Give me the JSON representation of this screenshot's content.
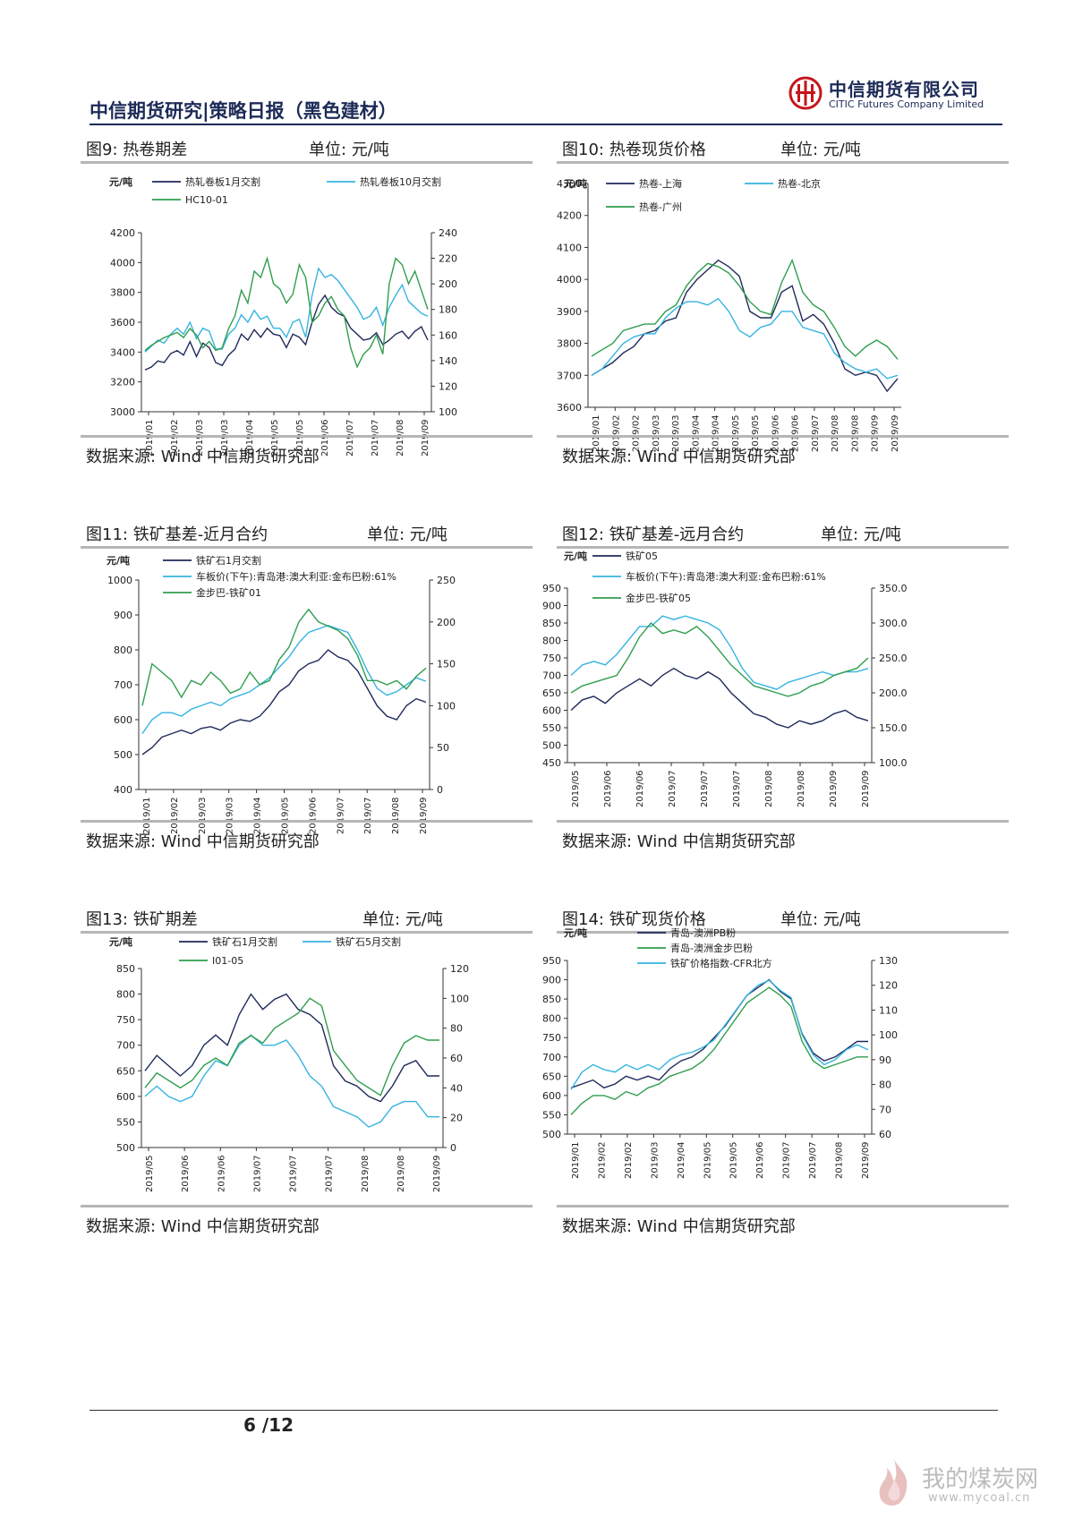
{
  "header": {
    "title": "中信期货研究|策略日报（黑色建材）",
    "logo_cn": "中信期货有限公司",
    "logo_en": "CITIC Futures Company Limited",
    "brand_color": "#c4161c",
    "navy": "#1c2a57"
  },
  "footer": {
    "page": "6 /12"
  },
  "watermark": {
    "cn": "我的煤炭网",
    "url": "www.mycoal.cn"
  },
  "panels": [
    {
      "title": "图9: 热卷期差",
      "unit": "单位: 元/吨",
      "source": "数据来源: Wind 中信期货研究部",
      "chart_data": {
        "type": "line",
        "ylabel": "元/吨",
        "ylim": [
          3000,
          4200
        ],
        "y_ticks": [
          3000,
          3200,
          3400,
          3600,
          3800,
          4000,
          4200
        ],
        "y2lim": [
          100,
          240
        ],
        "y2_ticks": [
          100,
          120,
          140,
          160,
          180,
          200,
          220,
          240
        ],
        "x_ticks": [
          "2019/01",
          "2019/02",
          "2019/03",
          "2019/03",
          "2019/04",
          "2019/05",
          "2019/05",
          "2019/06",
          "2019/07",
          "2019/07",
          "2019/08",
          "2019/09"
        ],
        "series": [
          {
            "name": "热轧卷板1月交割",
            "axis": "left",
            "color": "#1f2a5a",
            "values": [
              3280,
              3300,
              3340,
              3330,
              3390,
              3410,
              3380,
              3470,
              3370,
              3460,
              3430,
              3330,
              3310,
              3380,
              3420,
              3520,
              3480,
              3550,
              3500,
              3560,
              3520,
              3510,
              3430,
              3520,
              3500,
              3450,
              3600,
              3720,
              3780,
              3700,
              3660,
              3640,
              3560,
              3520,
              3480,
              3490,
              3530,
              3450,
              3480,
              3520,
              3540,
              3490,
              3540,
              3570,
              3480
            ]
          },
          {
            "name": "热轧卷板10月交割",
            "axis": "left",
            "color": "#35b4e0",
            "values": [
              3400,
              3440,
              3480,
              3460,
              3520,
              3560,
              3520,
              3600,
              3490,
              3560,
              3540,
              3420,
              3420,
              3520,
              3560,
              3650,
              3600,
              3680,
              3620,
              3640,
              3560,
              3560,
              3500,
              3600,
              3620,
              3500,
              3780,
              3960,
              3900,
              3920,
              3880,
              3820,
              3760,
              3700,
              3620,
              3640,
              3700,
              3580,
              3700,
              3780,
              3850,
              3740,
              3700,
              3660,
              3640
            ]
          },
          {
            "name": "HC10-01",
            "axis": "right",
            "color": "#2f9e4e",
            "values": [
              148,
              152,
              155,
              158,
              160,
              162,
              158,
              165,
              160,
              150,
              155,
              148,
              150,
              165,
              175,
              195,
              185,
              210,
              205,
              220,
              200,
              196,
              185,
              192,
              215,
              205,
              170,
              175,
              185,
              190,
              180,
              175,
              150,
              135,
              145,
              150,
              160,
              145,
              200,
              220,
              215,
              200,
              210,
              195,
              180
            ]
          }
        ]
      }
    },
    {
      "title": "图10: 热卷现货价格",
      "unit": "单位: 元/吨",
      "source": "数据来源: Wind 中信期货研究部",
      "chart_data": {
        "type": "line",
        "ylabel": "元/吨",
        "ylim": [
          3600,
          4300
        ],
        "y_ticks": [
          3600,
          3700,
          3800,
          3900,
          4000,
          4100,
          4200,
          4300
        ],
        "x_ticks": [
          "2019/01",
          "2019/02",
          "2019/02",
          "2019/03",
          "2019/03",
          "2019/04",
          "2019/04",
          "2019/05",
          "2019/05",
          "2019/06",
          "2019/06",
          "2019/07",
          "2019/08",
          "2019/08",
          "2019/09",
          "2019/09"
        ],
        "series": [
          {
            "name": "热卷-上海",
            "color": "#1f2a5a",
            "values": [
              3700,
              3720,
              3740,
              3770,
              3790,
              3830,
              3840,
              3870,
              3880,
              3960,
              4000,
              4030,
              4060,
              4040,
              4010,
              3900,
              3880,
              3880,
              3960,
              3980,
              3870,
              3890,
              3860,
              3800,
              3720,
              3700,
              3710,
              3700,
              3650,
              3690
            ]
          },
          {
            "name": "热卷-北京",
            "color": "#35b4e0",
            "values": [
              3700,
              3720,
              3760,
              3800,
              3820,
              3830,
              3830,
              3880,
              3910,
              3930,
              3930,
              3920,
              3940,
              3900,
              3840,
              3820,
              3850,
              3860,
              3900,
              3900,
              3850,
              3840,
              3830,
              3770,
              3740,
              3720,
              3710,
              3720,
              3690,
              3700
            ]
          },
          {
            "name": "热卷-广州",
            "color": "#2f9e4e",
            "values": [
              3760,
              3780,
              3800,
              3840,
              3850,
              3860,
              3860,
              3900,
              3920,
              3980,
              4020,
              4050,
              4040,
              4020,
              3980,
              3930,
              3900,
              3890,
              3990,
              4060,
              3960,
              3920,
              3900,
              3850,
              3790,
              3760,
              3790,
              3810,
              3790,
              3750
            ]
          }
        ]
      }
    },
    {
      "title": "图11: 铁矿基差-近月合约",
      "unit": "单位: 元/吨",
      "source": "数据来源: Wind 中信期货研究部",
      "chart_data": {
        "type": "line",
        "ylabel": "元/吨",
        "ylim": [
          400,
          1000
        ],
        "y_ticks": [
          400,
          500,
          600,
          700,
          800,
          900,
          1000
        ],
        "y2lim": [
          0,
          250
        ],
        "y2_ticks": [
          0,
          50,
          100,
          150,
          200,
          250
        ],
        "x_ticks": [
          "2019/01",
          "2019/02",
          "2019/03",
          "2019/03",
          "2019/04",
          "2019/05",
          "2019/06",
          "2019/07",
          "2019/07",
          "2019/08",
          "2019/09"
        ],
        "series": [
          {
            "name": "铁矿石1月交割",
            "axis": "left",
            "color": "#1f2a5a",
            "values": [
              500,
              520,
              550,
              560,
              570,
              560,
              575,
              580,
              570,
              590,
              600,
              595,
              610,
              640,
              680,
              700,
              740,
              760,
              770,
              800,
              780,
              770,
              740,
              690,
              640,
              610,
              600,
              640,
              660,
              650
            ]
          },
          {
            "name": "车板价(下午):青岛港:澳大利亚:金布巴粉:61%",
            "axis": "left",
            "color": "#35b4e0",
            "values": [
              560,
              600,
              620,
              620,
              610,
              630,
              640,
              650,
              640,
              660,
              670,
              680,
              700,
              720,
              750,
              780,
              820,
              850,
              860,
              870,
              860,
              850,
              800,
              740,
              690,
              670,
              680,
              700,
              720,
              710
            ]
          },
          {
            "name": "金步巴-铁矿01",
            "axis": "right",
            "color": "#2f9e4e",
            "values": [
              100,
              150,
              140,
              130,
              110,
              130,
              125,
              140,
              130,
              115,
              120,
              140,
              125,
              130,
              155,
              170,
              200,
              215,
              200,
              195,
              190,
              180,
              160,
              130,
              130,
              125,
              130,
              120,
              135,
              145
            ]
          }
        ]
      }
    },
    {
      "title": "图12: 铁矿基差-远月合约",
      "unit": "单位: 元/吨",
      "source": "数据来源: Wind 中信期货研究部",
      "chart_data": {
        "type": "line",
        "ylabel": "元/吨",
        "ylim": [
          450,
          950
        ],
        "y_ticks": [
          450,
          500,
          550,
          600,
          650,
          700,
          750,
          800,
          850,
          900,
          950
        ],
        "y2lim": [
          100,
          350
        ],
        "y2_ticks": [
          "100.0",
          "150.0",
          "200.0",
          "250.0",
          "300.0",
          "350.0"
        ],
        "x_ticks": [
          "2019/05",
          "2019/06",
          "2019/06",
          "2019/07",
          "2019/07",
          "2019/07",
          "2019/08",
          "2019/08",
          "2019/09",
          "2019/09"
        ],
        "series": [
          {
            "name": "铁矿05",
            "axis": "left",
            "color": "#1f2a5a",
            "values": [
              600,
              630,
              640,
              620,
              650,
              670,
              690,
              670,
              700,
              720,
              700,
              690,
              710,
              690,
              650,
              620,
              590,
              580,
              560,
              550,
              570,
              560,
              570,
              590,
              600,
              580,
              570
            ]
          },
          {
            "name": "车板价(下午):青岛港:澳大利亚:金布巴粉:61%",
            "axis": "left",
            "color": "#35b4e0",
            "values": [
              700,
              730,
              740,
              730,
              760,
              800,
              840,
              840,
              870,
              860,
              870,
              860,
              850,
              830,
              780,
              720,
              680,
              670,
              660,
              680,
              690,
              700,
              710,
              700,
              710,
              710,
              720
            ]
          },
          {
            "name": "金步巴-铁矿05",
            "axis": "right",
            "color": "#2f9e4e",
            "values": [
              200,
              210,
              215,
              220,
              225,
              250,
              280,
              300,
              285,
              290,
              285,
              295,
              280,
              260,
              240,
              225,
              210,
              205,
              200,
              195,
              200,
              210,
              215,
              225,
              230,
              235,
              250
            ]
          }
        ]
      }
    },
    {
      "title": "图13: 铁矿期差",
      "unit": "单位: 元/吨",
      "source": "数据来源: Wind 中信期货研究部",
      "chart_data": {
        "type": "line",
        "ylabel": "元/吨",
        "ylim": [
          500,
          850
        ],
        "y_ticks": [
          500,
          550,
          600,
          650,
          700,
          750,
          800,
          850
        ],
        "y2lim": [
          0,
          120
        ],
        "y2_ticks": [
          0,
          20,
          40,
          60,
          80,
          100,
          120
        ],
        "x_ticks": [
          "2019/05",
          "2019/06",
          "2019/06",
          "2019/07",
          "2019/07",
          "2019/07",
          "2019/08",
          "2019/08",
          "2019/09"
        ],
        "series": [
          {
            "name": "铁矿石1月交割",
            "axis": "left",
            "color": "#1f2a5a",
            "values": [
              650,
              680,
              660,
              640,
              660,
              700,
              720,
              700,
              760,
              800,
              770,
              790,
              800,
              770,
              760,
              740,
              660,
              630,
              620,
              600,
              590,
              620,
              660,
              670,
              640,
              640
            ]
          },
          {
            "name": "铁矿石5月交割",
            "axis": "left",
            "color": "#35b4e0",
            "values": [
              600,
              620,
              600,
              590,
              600,
              640,
              670,
              660,
              700,
              720,
              700,
              700,
              710,
              680,
              640,
              620,
              580,
              570,
              560,
              540,
              550,
              580,
              590,
              590,
              560,
              560
            ]
          },
          {
            "name": "I01-05",
            "axis": "right",
            "color": "#2f9e4e",
            "values": [
              40,
              50,
              45,
              40,
              45,
              55,
              60,
              55,
              70,
              75,
              70,
              80,
              85,
              90,
              100,
              95,
              65,
              55,
              45,
              40,
              35,
              55,
              70,
              75,
              72,
              72
            ]
          }
        ]
      }
    },
    {
      "title": "图14: 铁矿现货价格",
      "unit": "单位: 元/吨",
      "source": "数据来源: Wind 中信期货研究部",
      "chart_data": {
        "type": "line",
        "ylabel": "元/吨",
        "ylim": [
          500,
          950
        ],
        "y_ticks": [
          500,
          550,
          600,
          650,
          700,
          750,
          800,
          850,
          900,
          950
        ],
        "y2lim": [
          60,
          130
        ],
        "y2_ticks": [
          60,
          70,
          80,
          90,
          100,
          110,
          120,
          130
        ],
        "x_ticks": [
          "2019/01",
          "2019/02",
          "2019/02",
          "2019/03",
          "2019/04",
          "2019/05",
          "2019/05",
          "2019/06",
          "2019/07",
          "2019/07",
          "2019/08",
          "2019/09"
        ],
        "series": [
          {
            "name": "青岛-澳洲PB粉",
            "axis": "left",
            "color": "#1f2a5a",
            "values": [
              620,
              630,
              640,
              620,
              630,
              650,
              640,
              650,
              640,
              670,
              690,
              700,
              720,
              750,
              780,
              820,
              860,
              880,
              900,
              870,
              850,
              760,
              710,
              690,
              700,
              720,
              740,
              740
            ]
          },
          {
            "name": "青岛-澳洲金步巴粉",
            "axis": "left",
            "color": "#2f9e4e",
            "values": [
              550,
              580,
              600,
              600,
              590,
              610,
              600,
              620,
              630,
              650,
              660,
              670,
              690,
              720,
              760,
              800,
              840,
              860,
              880,
              860,
              830,
              740,
              690,
              670,
              680,
              690,
              700,
              700
            ]
          },
          {
            "name": "铁矿价格指数-CFR北方",
            "axis": "right",
            "color": "#35b4e0",
            "values": [
              78,
              85,
              88,
              86,
              85,
              88,
              86,
              88,
              86,
              90,
              92,
              93,
              95,
              98,
              104,
              110,
              116,
              120,
              122,
              118,
              115,
              100,
              92,
              88,
              90,
              94,
              96,
              94
            ]
          }
        ]
      }
    }
  ]
}
